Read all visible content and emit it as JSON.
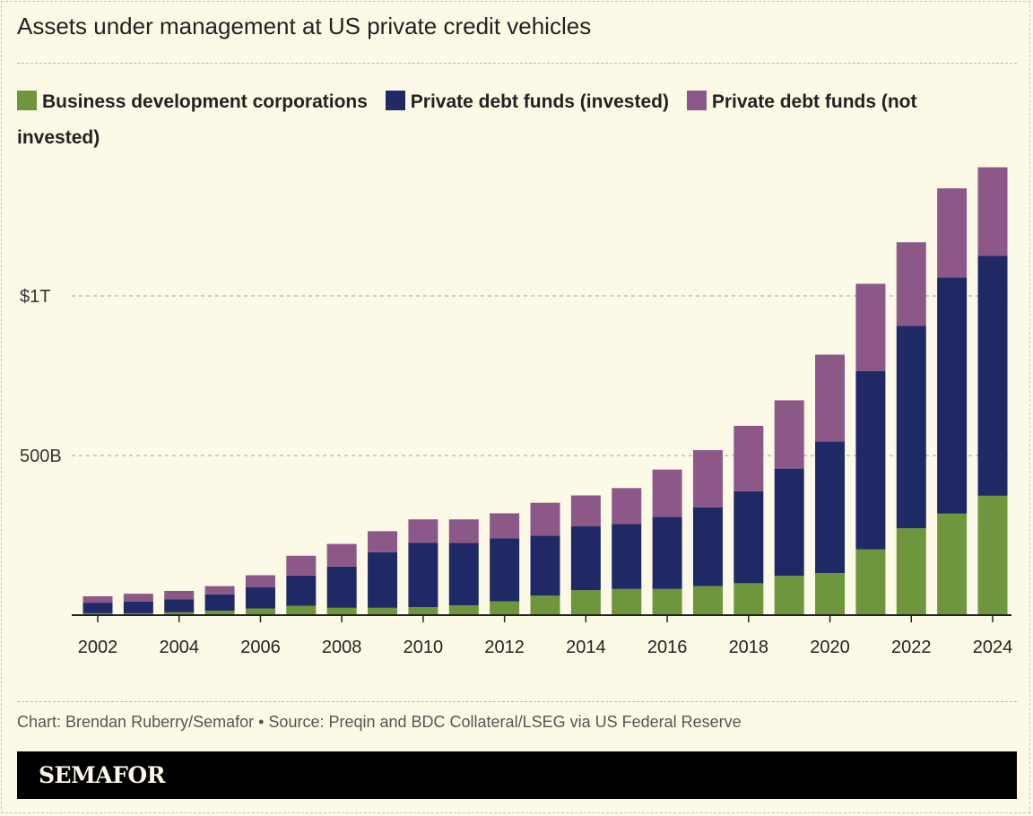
{
  "title": "Assets under management at US private credit vehicles",
  "source": "Chart: Brendan Ruberry/Semafor • Source: Preqin and BDC Collateral/LSEG via US Federal Reserve",
  "brand": "SEMAFOR",
  "chart_data": {
    "type": "bar",
    "stacked": true,
    "title": "Assets under management at US private credit vehicles",
    "xlabel": "",
    "ylabel": "",
    "unit": "billions of US dollars",
    "ylim": [
      0,
      1450
    ],
    "yticks": [
      {
        "value": 500,
        "label": "500B"
      },
      {
        "value": 1000,
        "label": "$1T"
      }
    ],
    "xtick_labels": [
      "2002",
      "2004",
      "2006",
      "2008",
      "2010",
      "2012",
      "2014",
      "2016",
      "2018",
      "2020",
      "2022",
      "2024"
    ],
    "grid": "horizontal dashed",
    "legend_placement": "top",
    "categories": [
      "2002",
      "2003",
      "2004",
      "2005",
      "2006",
      "2007",
      "2008",
      "2009",
      "2010",
      "2011",
      "2012",
      "2013",
      "2014",
      "2015",
      "2016",
      "2017",
      "2018",
      "2019",
      "2020",
      "2021",
      "2022",
      "2023",
      "2024"
    ],
    "series": [
      {
        "name": "Business development corporations",
        "color": "#6e963c",
        "values": [
          6,
          6,
          9,
          14,
          21,
          29,
          23,
          23,
          25,
          31,
          43,
          61,
          78,
          82,
          82,
          91,
          100,
          123,
          132,
          206,
          272,
          318,
          374
        ]
      },
      {
        "name": "Private debt funds (invested)",
        "color": "#1f2966",
        "values": [
          33,
          37,
          41,
          51,
          66,
          95,
          129,
          174,
          202,
          195,
          198,
          188,
          201,
          203,
          226,
          247,
          288,
          336,
          412,
          559,
          634,
          740,
          752
        ]
      },
      {
        "name": "Private debt funds (not invested)",
        "color": "#8c5887",
        "values": [
          20,
          24,
          26,
          26,
          38,
          62,
          71,
          66,
          73,
          74,
          78,
          103,
          96,
          113,
          148,
          179,
          205,
          214,
          272,
          273,
          262,
          279,
          277
        ]
      }
    ]
  }
}
